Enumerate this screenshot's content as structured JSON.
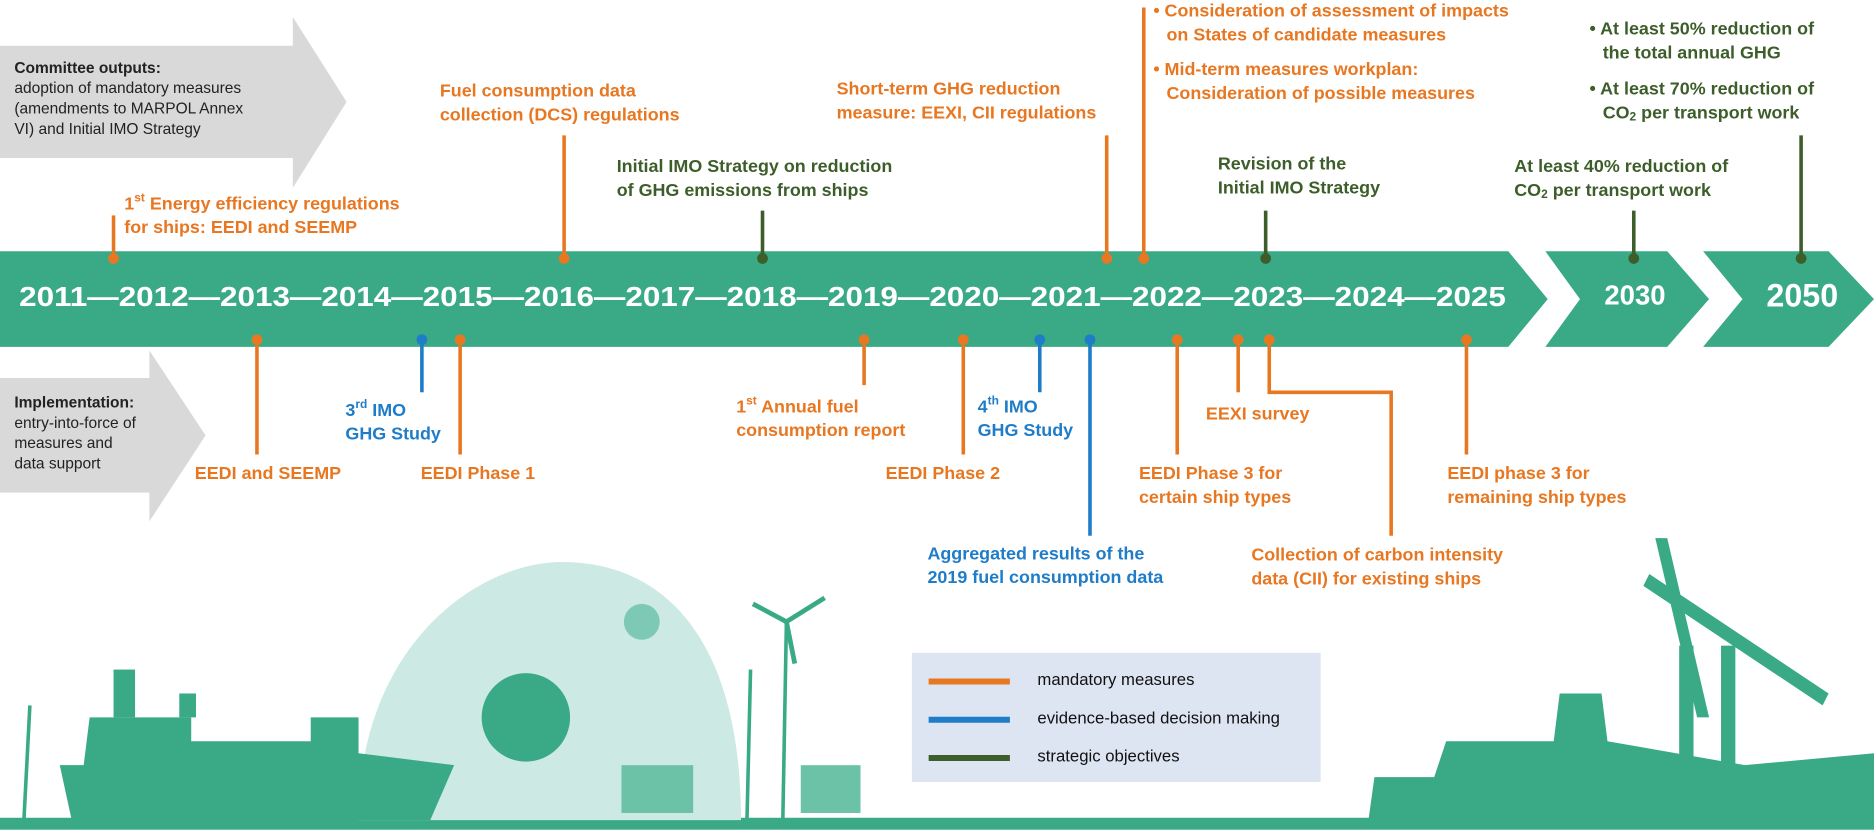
{
  "panels": {
    "outputs": {
      "title": "Committee outputs:",
      "lines": [
        "adoption of mandatory measures",
        "(amendments to MARPOL  Annex",
        "VI)  and Initial IMO  Strategy"
      ]
    },
    "implementation": {
      "title": "Implementation:",
      "lines": [
        "entry-into-force of",
        "measures and",
        "data support"
      ]
    }
  },
  "timeline": {
    "label": "2011—2012—2013—2014—2015—2016—2017—2018—2019—2020—2021—2022—2023—2024—2025",
    "mid": "2030",
    "end": "2050"
  },
  "events_above": [
    {
      "color": "#e87722",
      "lines": [
        [
          {
            "text": "1"
          },
          {
            "text": "st",
            "style": "sup"
          },
          {
            "text": " Energy efficiency regulations"
          }
        ],
        "for ships:  EEDI and SEEMP"
      ]
    },
    {
      "color": "#e87722",
      "lines": [
        "Fuel consumption  data",
        "collection (DCS) regulations"
      ]
    },
    {
      "color": "#3d5e2a",
      "lines": [
        "Initial IMO Strategy on reduction",
        "of GHG emissions  from ships"
      ]
    },
    {
      "color": "#e87722",
      "lines": [
        "Short-term GHG reduction",
        "measure: EEXI, CII regulations"
      ]
    },
    {
      "color": "#e87722",
      "lines": [
        "• Consideration of assessment  of impacts",
        "on States of candidate measures",
        "• Mid-term measures workplan:",
        "Consideration of possible measures"
      ]
    },
    {
      "color": "#3d5e2a",
      "lines": [
        "Revision of the",
        "Initial IMO Strategy"
      ]
    },
    {
      "color": "#3d5e2a",
      "lines": [
        "At least 40% reduction of",
        [
          {
            "text": "CO"
          },
          {
            "text": "2",
            "style": "sub"
          },
          {
            "text": " per transport work"
          }
        ]
      ]
    },
    {
      "color": "#3d5e2a",
      "lines": [
        "• At least 50% reduction of",
        "the total annual GHG",
        "• At least 70% reduction of",
        [
          {
            "text": "CO"
          },
          {
            "text": "2",
            "style": "sub"
          },
          {
            "text": "  per transport work"
          }
        ]
      ]
    }
  ],
  "events_below": [
    {
      "color": "#e87722",
      "lines": [
        "EEDI  and SEEMP"
      ]
    },
    {
      "color": "#1f7cc8",
      "lines": [
        [
          {
            "text": "3"
          },
          {
            "text": "rd",
            "style": "sup"
          },
          {
            "text": " IMO"
          }
        ],
        "GHG  Study"
      ]
    },
    {
      "color": "#e87722",
      "lines": [
        "EEDI  Phase 1"
      ]
    },
    {
      "color": "#e87722",
      "lines": [
        [
          {
            "text": "1"
          },
          {
            "text": "st",
            "style": "sup"
          },
          {
            "text": " Annual fuel"
          }
        ],
        "consumption  report"
      ]
    },
    {
      "color": "#e87722",
      "lines": [
        "EEDI  Phase 2"
      ]
    },
    {
      "color": "#1f7cc8",
      "lines": [
        [
          {
            "text": "4"
          },
          {
            "text": "th",
            "style": "sup"
          },
          {
            "text": " IMO"
          }
        ],
        "GHG  Study"
      ]
    },
    {
      "color": "#1f7cc8",
      "lines": [
        "Aggregated results of the",
        "2019 fuel consumption  data"
      ]
    },
    {
      "color": "#e87722",
      "lines": [
        "EEDI  Phase 3 for",
        "certain ship types"
      ]
    },
    {
      "color": "#e87722",
      "lines": [
        "EEXI survey"
      ]
    },
    {
      "color": "#e87722",
      "lines": [
        "Collection of carbon intensity",
        "data (CII) for existing ships"
      ]
    },
    {
      "color": "#e87722",
      "lines": [
        "EEDI  phase 3 for",
        "remaining ship types"
      ]
    }
  ],
  "legend": [
    {
      "label": "mandatory measures",
      "color": "#e87722"
    },
    {
      "label": "evidence-based decision making",
      "color": "#1f7cc8"
    },
    {
      "label": "strategic objectives",
      "color": "#3d5e2a"
    }
  ]
}
